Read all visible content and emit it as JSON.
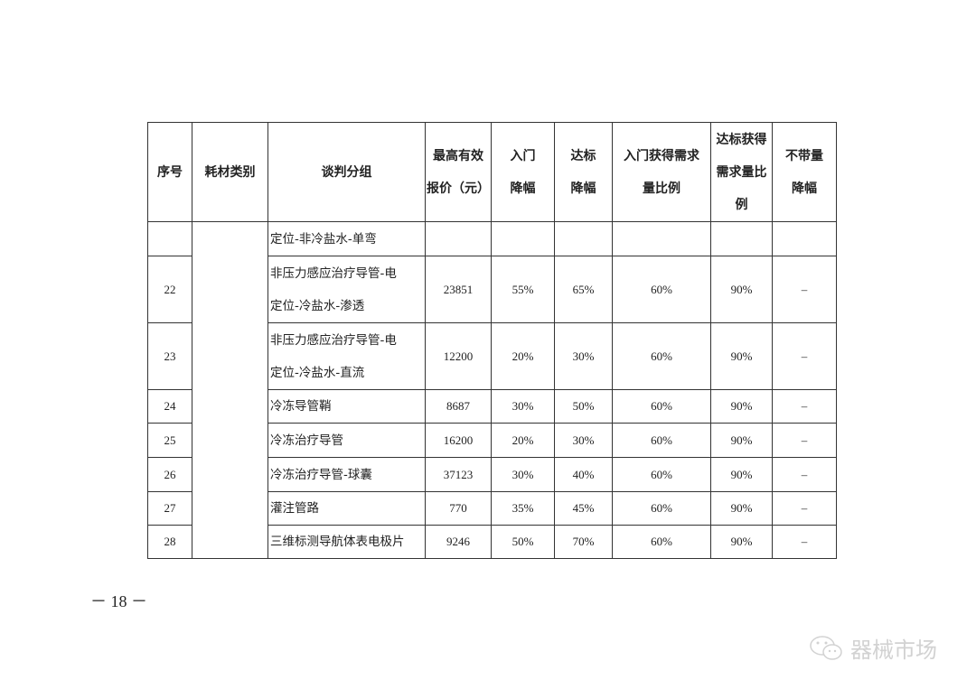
{
  "headers": [
    [
      "序号"
    ],
    [
      "耗材类别"
    ],
    [
      "谈判分组"
    ],
    [
      "最高有效",
      "报价（元）"
    ],
    [
      "入门",
      "降幅"
    ],
    [
      "达标",
      "降幅"
    ],
    [
      "入门获得需求",
      "量比例"
    ],
    [
      "达标获得",
      "需求量比",
      "例"
    ],
    [
      "不带量",
      "降幅"
    ]
  ],
  "rows": [
    {
      "no": "",
      "group": [
        "定位-非冷盐水-单弯"
      ],
      "price": "",
      "entry": "",
      "target": "",
      "entry_ratio": "",
      "target_ratio": "",
      "no_volume": ""
    },
    {
      "no": "22",
      "group": [
        "非压力感应治疗导管-电",
        "定位-冷盐水-渗透"
      ],
      "price": "23851",
      "entry": "55%",
      "target": "65%",
      "entry_ratio": "60%",
      "target_ratio": "90%",
      "no_volume": "–"
    },
    {
      "no": "23",
      "group": [
        "非压力感应治疗导管-电",
        "定位-冷盐水-直流"
      ],
      "price": "12200",
      "entry": "20%",
      "target": "30%",
      "entry_ratio": "60%",
      "target_ratio": "90%",
      "no_volume": "–"
    },
    {
      "no": "24",
      "group": [
        "冷冻导管鞘"
      ],
      "price": "8687",
      "entry": "30%",
      "target": "50%",
      "entry_ratio": "60%",
      "target_ratio": "90%",
      "no_volume": "–"
    },
    {
      "no": "25",
      "group": [
        "冷冻治疗导管"
      ],
      "price": "16200",
      "entry": "20%",
      "target": "30%",
      "entry_ratio": "60%",
      "target_ratio": "90%",
      "no_volume": "–"
    },
    {
      "no": "26",
      "group": [
        "冷冻治疗导管-球囊"
      ],
      "price": "37123",
      "entry": "30%",
      "target": "40%",
      "entry_ratio": "60%",
      "target_ratio": "90%",
      "no_volume": "–"
    },
    {
      "no": "27",
      "group": [
        "灌注管路"
      ],
      "price": "770",
      "entry": "35%",
      "target": "45%",
      "entry_ratio": "60%",
      "target_ratio": "90%",
      "no_volume": "–"
    },
    {
      "no": "28",
      "group": [
        "三维标测导航体表电极片"
      ],
      "price": "9246",
      "entry": "50%",
      "target": "70%",
      "entry_ratio": "60%",
      "target_ratio": "90%",
      "no_volume": "–"
    }
  ],
  "category": "",
  "page_number": "－ 18 －",
  "watermark": {
    "icon": "wechat-icon",
    "text": "器械市场"
  }
}
